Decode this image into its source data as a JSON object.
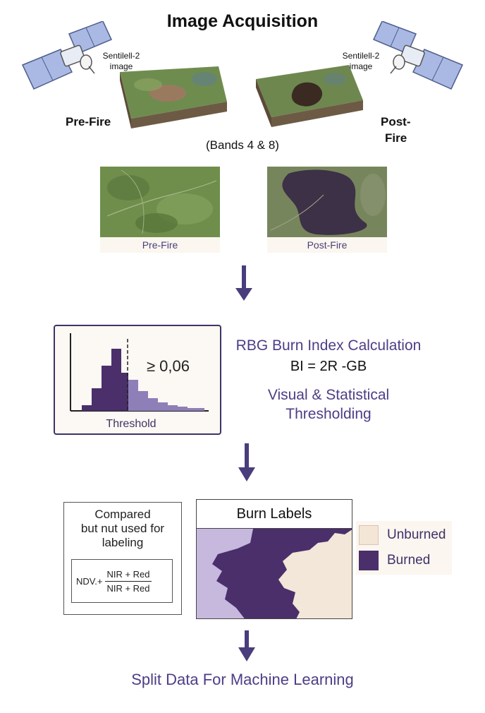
{
  "title": "Image Acquisition",
  "satellite_left_label": "Sentilell-2 image",
  "satellite_right_label": "Sentilell-2 image",
  "pre_fire_label": "Pre-Fire",
  "post_fire_label_line1": "Post-",
  "post_fire_label_line2": "Fire",
  "bands_label": "(Bands 4 & 8)",
  "image_captions": {
    "pre": "Pre-Fire",
    "post": "Post-Fire"
  },
  "histogram": {
    "threshold_value": "≥ 0,06",
    "caption": "Threshold"
  },
  "calc": {
    "title": "RBG Burn Index Calculation",
    "formula": "BI = 2R -GB",
    "thresholding_line1": "Visual & Statistical",
    "thresholding_line2": "Thresholding"
  },
  "compare_box": {
    "line1": "Compared",
    "line2": "but nut used for",
    "line3": "labeling",
    "formula_prefix": "NDV.+",
    "numerator": "NIR + Red",
    "denominator": "NIR + Red"
  },
  "burn_labels": {
    "title": "Burn Labels",
    "legend": [
      {
        "label": "Unburned",
        "color": "#f4e6d6"
      },
      {
        "label": "Burned",
        "color": "#4a2f6b"
      }
    ]
  },
  "footer": "Split Data For Machine Learning",
  "colors": {
    "accent": "#4e3d86",
    "arrow": "#4a3d7c",
    "burned": "#4a2f6b",
    "unburned": "#f4e6d6",
    "light_burn": "#c4b6dc"
  },
  "icons": [
    "satellite-icon",
    "down-arrow-icon"
  ]
}
